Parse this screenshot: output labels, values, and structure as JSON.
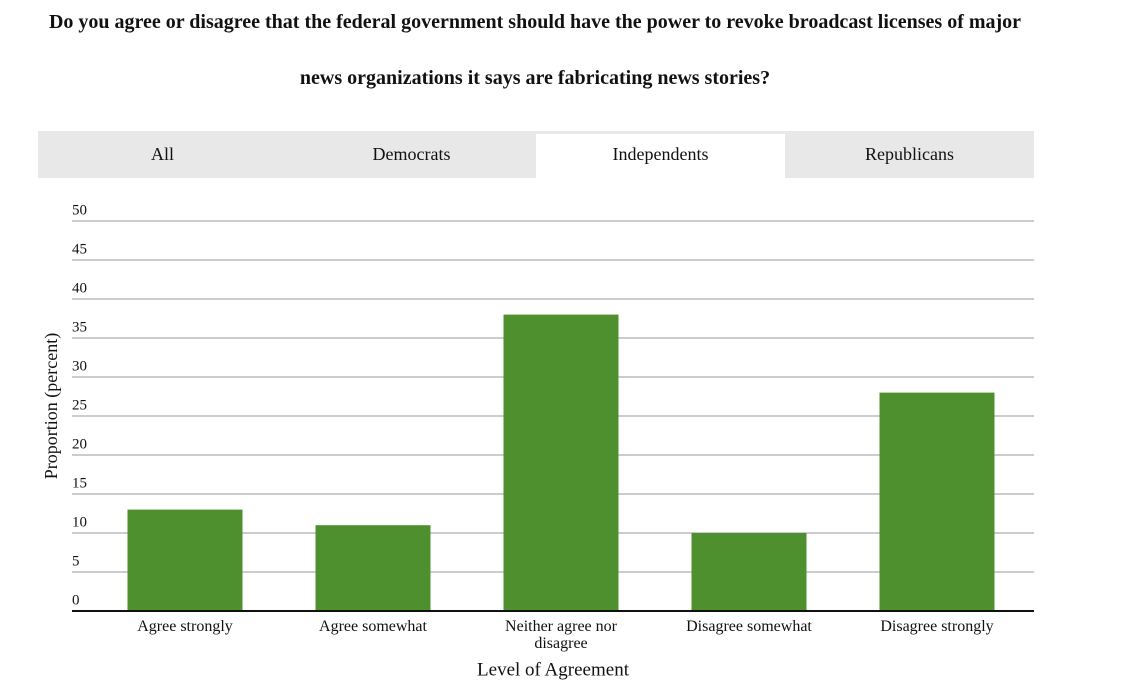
{
  "title": "Do you agree or disagree that the federal government should have the power to revoke broadcast licenses of major news organizations it says are fabricating news stories?",
  "tabs": [
    "All",
    "Democrats",
    "Independents",
    "Republicans"
  ],
  "chart_data": {
    "type": "bar",
    "categories": [
      "Agree strongly",
      "Agree somewhat",
      "Neither agree nor disagree",
      "Disagree somewhat",
      "Disagree strongly"
    ],
    "values": [
      13,
      11,
      38,
      10,
      28
    ],
    "color": "#4e8f2e",
    "ylim": [
      0,
      50
    ],
    "yticks": [
      0,
      5,
      10,
      15,
      20,
      25,
      30,
      35,
      40,
      45,
      50
    ],
    "grid": true,
    "x_label": "Level of Agreement",
    "y_label": "Proportion (percent)"
  }
}
